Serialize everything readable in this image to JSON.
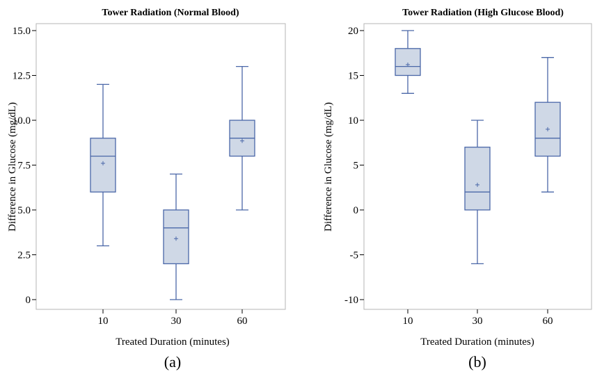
{
  "chart_data": [
    {
      "type": "box",
      "title": "Tower Radiation (Normal Blood)",
      "xlabel": "Treated Duration (minutes)",
      "ylabel": "Difference in Glucose (mg/dL)",
      "caption": "(a)",
      "categories": [
        "10",
        "30",
        "60"
      ],
      "yticks": [
        "0",
        "2.5",
        "5.0",
        "7.5",
        "10.0",
        "12.5",
        "15.0"
      ],
      "ylim": [
        0,
        15
      ],
      "boxes": [
        {
          "min": 3,
          "q1": 6,
          "median": 8,
          "q3": 9,
          "max": 12,
          "mean": 7.6
        },
        {
          "min": 0,
          "q1": 2,
          "median": 4,
          "q3": 5,
          "max": 7,
          "mean": 3.4
        },
        {
          "min": 5,
          "q1": 8,
          "median": 9,
          "q3": 10,
          "max": 13,
          "mean": 8.85
        }
      ]
    },
    {
      "type": "box",
      "title": "Tower Radiation (High Glucose Blood)",
      "xlabel": "Treated Duration (minutes)",
      "ylabel": "Difference in Glucose (mg/dL)",
      "caption": "(b)",
      "categories": [
        "10",
        "30",
        "60"
      ],
      "yticks": [
        "-10",
        "-5",
        "0",
        "5",
        "10",
        "15",
        "20"
      ],
      "ylim": [
        -10,
        20
      ],
      "boxes": [
        {
          "min": 13,
          "q1": 15,
          "median": 16,
          "q3": 18,
          "max": 20,
          "mean": 16.2
        },
        {
          "min": -6,
          "q1": 0,
          "median": 2,
          "q3": 7,
          "max": 10,
          "mean": 2.8
        },
        {
          "min": 2,
          "q1": 6,
          "median": 8,
          "q3": 12,
          "max": 17,
          "mean": 9
        }
      ]
    }
  ]
}
